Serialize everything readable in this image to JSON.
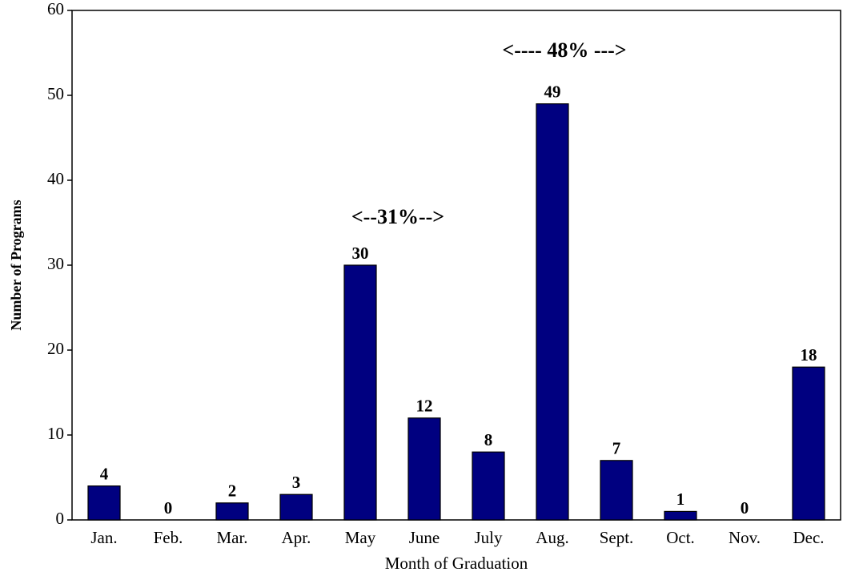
{
  "chart_data": {
    "type": "bar",
    "x_label": "Month of Graduation",
    "y_label": "Number of Programs",
    "categories": [
      "Jan.",
      "Feb.",
      "Mar.",
      "Apr.",
      "May",
      "June",
      "July",
      "Aug.",
      "Sept.",
      "Oct.",
      "Nov.",
      "Dec."
    ],
    "values": [
      4,
      0,
      2,
      3,
      30,
      12,
      8,
      49,
      7,
      1,
      0,
      18
    ],
    "color": "#000080",
    "ylim": [
      0,
      60
    ],
    "yticks": [
      0,
      10,
      20,
      30,
      40,
      50,
      60
    ],
    "annotations": [
      "<---- 48% --->",
      "<--31%-->"
    ]
  }
}
